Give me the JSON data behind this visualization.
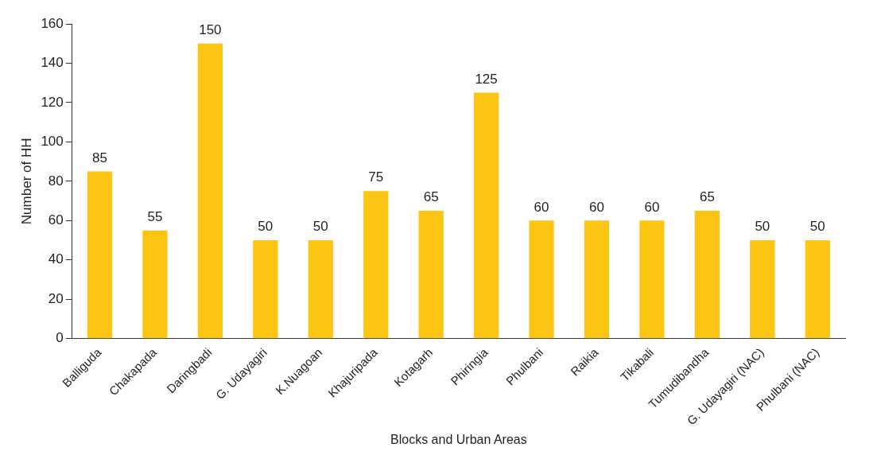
{
  "chart_data": {
    "type": "bar",
    "xlabel": "Blocks and Urban Areas",
    "ylabel": "Number of HH",
    "categories": [
      "Balliguda",
      "Chakapada",
      "Daringbadi",
      "G. Udayagiri",
      "K.Nuagoan",
      "Khajuripada",
      "Kotagarh",
      "Phiringia",
      "Phulbani",
      "Raikia",
      "Tikabali",
      "Tumudibandha",
      "G. Udayagiri (NAC)",
      "Phulbani (NAC)"
    ],
    "values": [
      85,
      55,
      150,
      50,
      50,
      75,
      65,
      125,
      60,
      60,
      60,
      65,
      50,
      50
    ],
    "color": "#fdc513",
    "ylim": [
      0,
      160
    ],
    "yticks": [
      0,
      20,
      40,
      60,
      80,
      100,
      120,
      140,
      160
    ],
    "grid": false,
    "legend": false,
    "data_labels": true
  }
}
